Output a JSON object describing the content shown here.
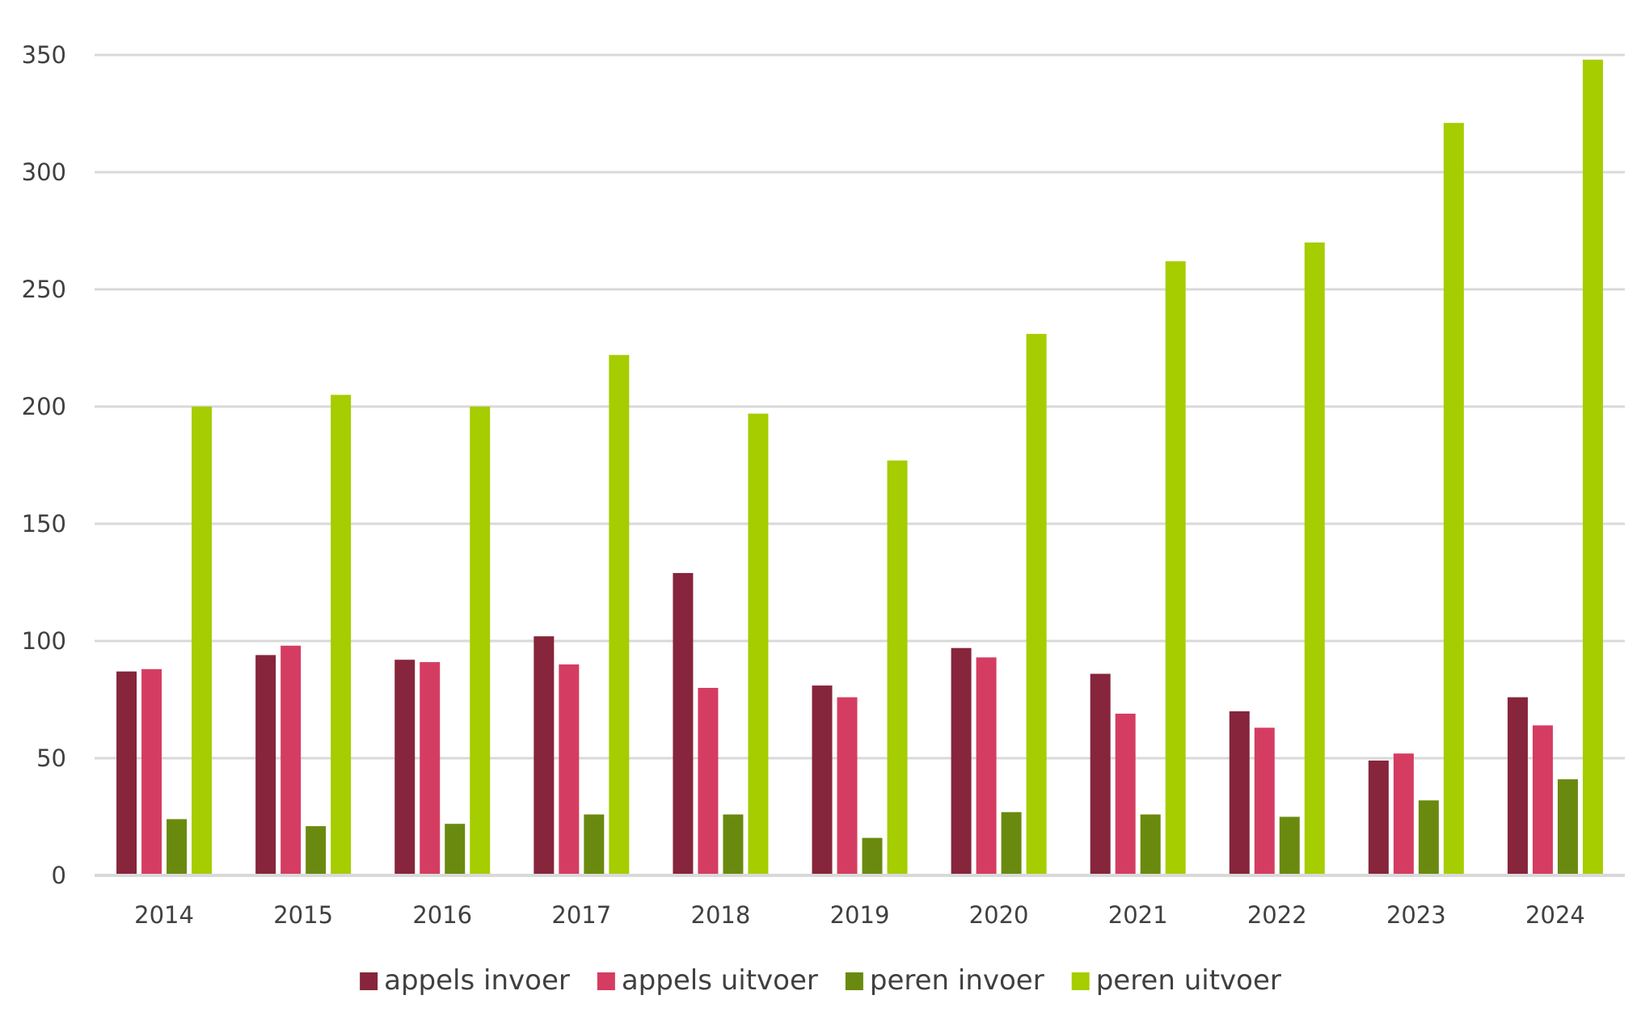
{
  "chart_data": {
    "type": "bar",
    "title": "",
    "xlabel": "",
    "ylabel": "",
    "categories": [
      "2014",
      "2015",
      "2016",
      "2017",
      "2018",
      "2019",
      "2020",
      "2021",
      "2022",
      "2023",
      "2024"
    ],
    "ylim": [
      0,
      350
    ],
    "yticks": [
      0,
      50,
      100,
      150,
      200,
      250,
      300,
      350
    ],
    "grid": true,
    "legend_position": "bottom",
    "series": [
      {
        "name": "appels invoer",
        "color": "#86253b",
        "values": [
          87,
          94,
          92,
          102,
          129,
          81,
          97,
          86,
          70,
          49,
          76
        ]
      },
      {
        "name": "appels uitvoer",
        "color": "#d43d61",
        "values": [
          88,
          98,
          91,
          90,
          80,
          76,
          93,
          69,
          63,
          52,
          64
        ]
      },
      {
        "name": "peren invoer",
        "color": "#6a8a0f",
        "values": [
          24,
          21,
          22,
          26,
          26,
          16,
          27,
          26,
          25,
          32,
          41
        ]
      },
      {
        "name": "peren uitvoer",
        "color": "#a5cd00",
        "values": [
          200,
          205,
          200,
          222,
          197,
          177,
          231,
          262,
          270,
          321,
          348
        ]
      }
    ]
  }
}
